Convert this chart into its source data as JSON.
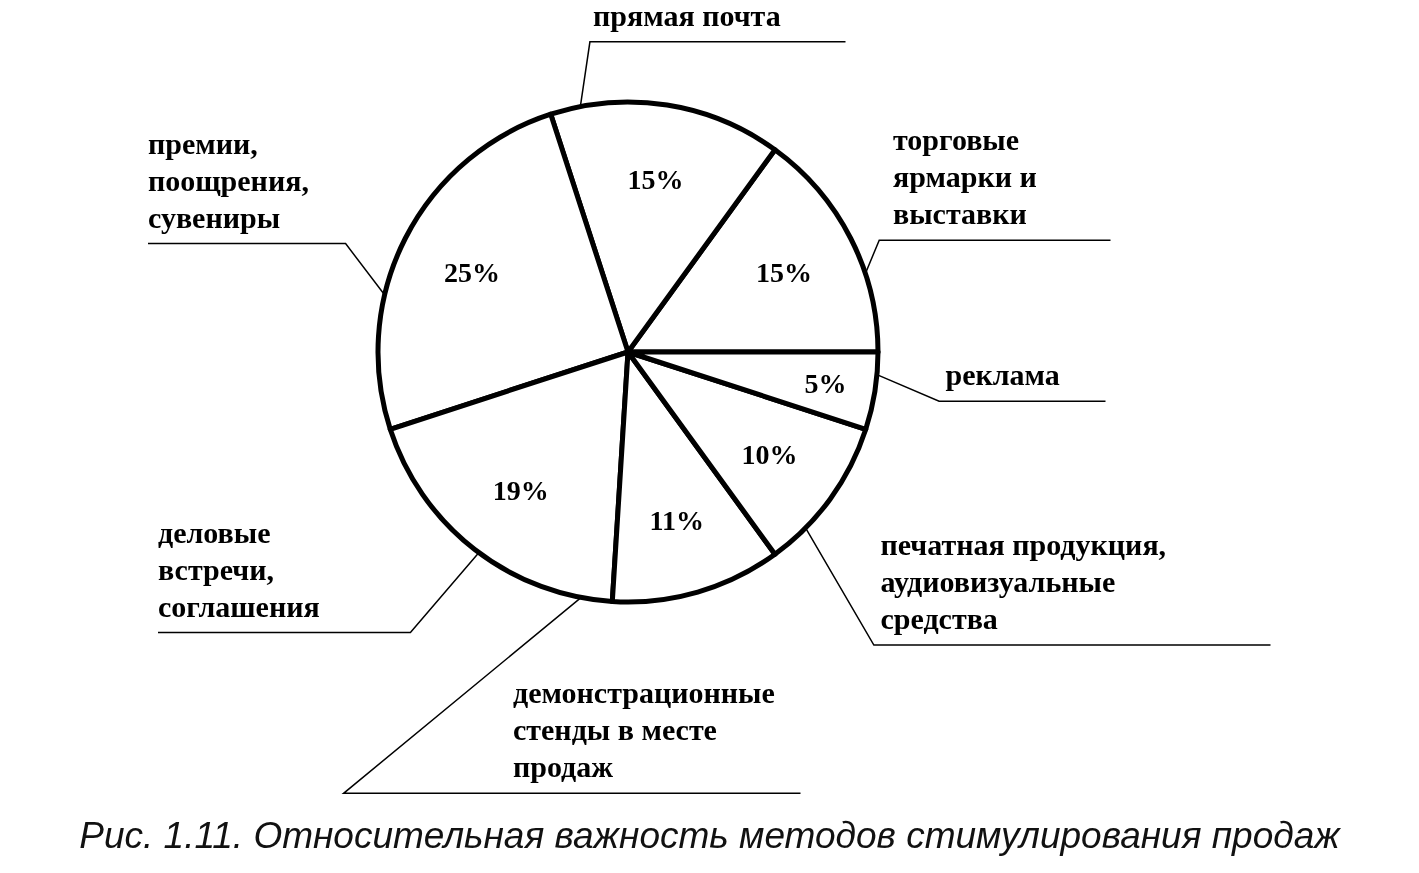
{
  "chart_data": {
    "type": "pie",
    "title": "Рис. 1.11. Относительная важность методов стимулирования продаж",
    "categories": [
      "торговые\nярмарки и\nвыставки",
      "прямая почта",
      "премии,\nпоощрения,\nсувениры",
      "деловые\nвстречи,\nсоглашения",
      "демонстрационные\nстенды в месте\nпродаж",
      "печатная продукция,\nаудиовизуальные\nсредства",
      "реклама"
    ],
    "values": [
      15,
      15,
      25,
      19,
      11,
      10,
      5
    ],
    "value_labels": [
      "15%",
      "15%",
      "25%",
      "19%",
      "11%",
      "10%",
      "5%"
    ],
    "colors": [
      "#ffffff",
      "#ffffff",
      "#ffffff",
      "#ffffff",
      "#ffffff",
      "#ffffff",
      "#ffffff"
    ]
  }
}
